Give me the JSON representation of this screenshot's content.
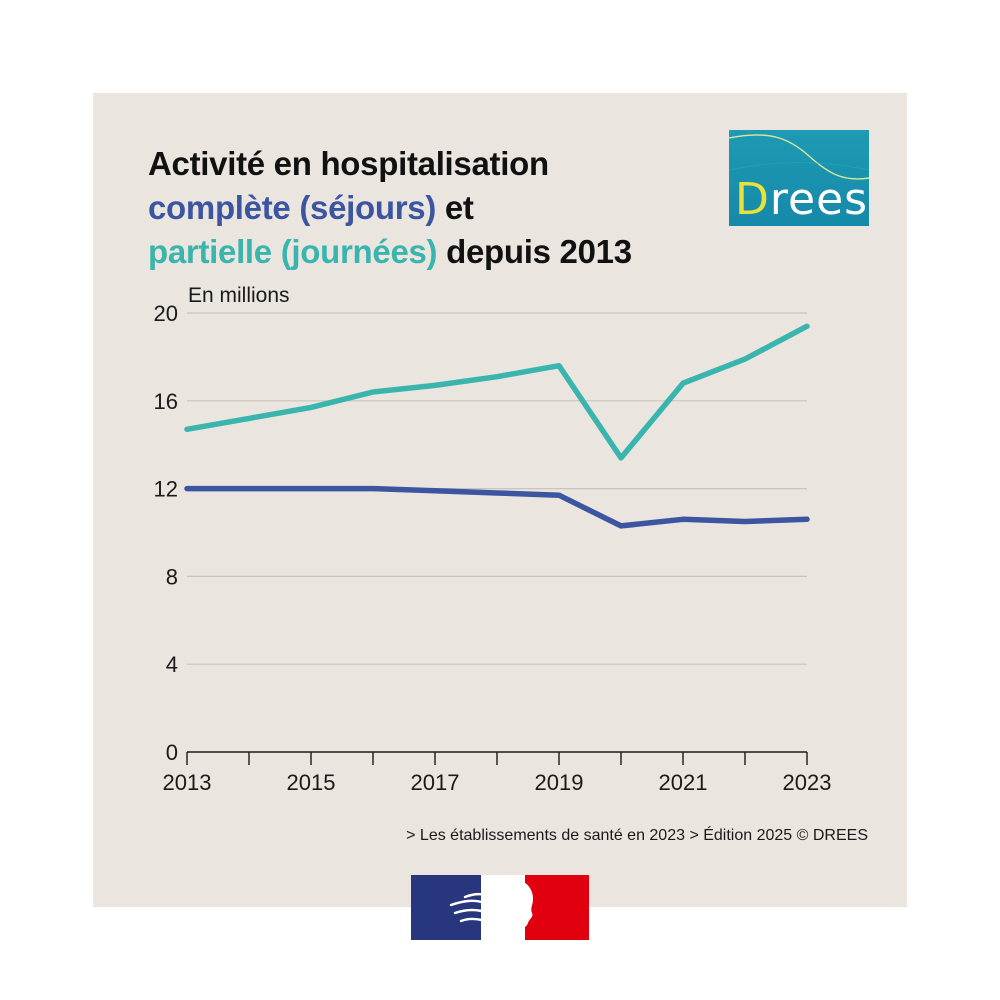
{
  "title": {
    "line1": "Activité en hospitalisation",
    "line2_colored": "complète (séjours)",
    "line2_rest": " et",
    "line3_colored": "partielle (journées)",
    "line3_rest": " depuis 2013"
  },
  "logo": {
    "text_first": "D",
    "text_rest": "rees"
  },
  "unit_label": "En millions",
  "source": "> Les établissements de santé en 2023 > Édition 2025 © DREES",
  "colors": {
    "background": "#ebe5e0",
    "complete": "#3c55a0",
    "partielle": "#3ab5ad",
    "grid": "#c9c4c0",
    "axis": "#1a1a1a"
  },
  "chart_data": {
    "type": "line",
    "x": [
      2013,
      2014,
      2015,
      2016,
      2017,
      2018,
      2019,
      2020,
      2021,
      2022,
      2023
    ],
    "x_tick_labels": [
      "2013",
      "2015",
      "2017",
      "2019",
      "2021",
      "2023"
    ],
    "y_ticks": [
      0,
      4,
      8,
      12,
      16,
      20
    ],
    "ylim": [
      0,
      20
    ],
    "ylabel": "En millions",
    "grid": "horizontal",
    "series": [
      {
        "name": "complète (séjours)",
        "color": "#3c55a0",
        "values": [
          12.0,
          12.0,
          12.0,
          12.0,
          11.9,
          11.8,
          11.7,
          10.3,
          10.6,
          10.5,
          10.6
        ]
      },
      {
        "name": "partielle (journées)",
        "color": "#3ab5ad",
        "values": [
          14.7,
          15.2,
          15.7,
          16.4,
          16.7,
          17.1,
          17.6,
          13.4,
          16.8,
          17.9,
          19.4
        ]
      }
    ]
  }
}
